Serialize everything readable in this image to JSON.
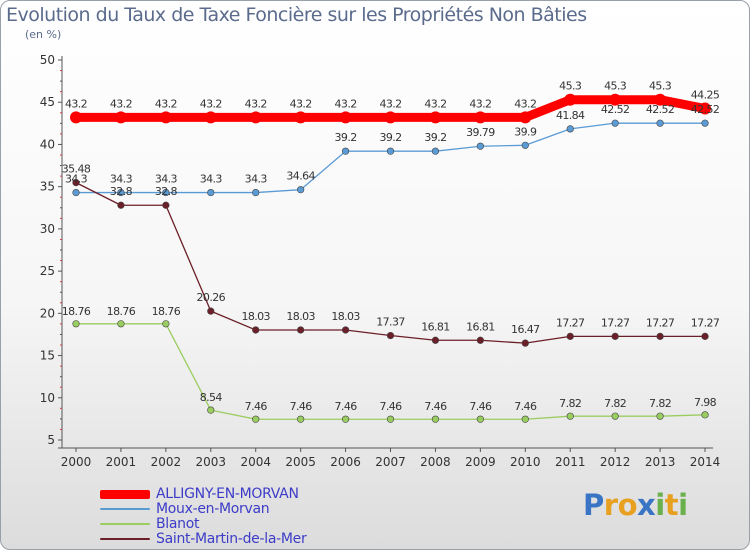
{
  "title": "Evolution du Taux de Taxe Foncière sur les Propriétés Non Bâties",
  "unit_label": "(en %)",
  "logo": {
    "text": "Proxiti",
    "letters": [
      {
        "char": "P",
        "color": "#3a74c4"
      },
      {
        "char": "r",
        "color": "#e8a020"
      },
      {
        "char": "o",
        "color": "#e8a020"
      },
      {
        "char": "x",
        "color": "#3a74c4"
      },
      {
        "char": "i",
        "color": "#6ab04c"
      },
      {
        "char": "t",
        "color": "#e8a020"
      },
      {
        "char": "i",
        "color": "#6ab04c"
      }
    ]
  },
  "chart_data": {
    "type": "line",
    "title": "Evolution du Taux de Taxe Foncière sur les Propriétés Non Bâties",
    "ylabel": "(en %)",
    "xlabel": "",
    "ylim": [
      5,
      50
    ],
    "yticks": [
      5,
      10,
      15,
      20,
      25,
      30,
      35,
      40,
      45,
      50
    ],
    "grid": false,
    "x": [
      "2000",
      "2001",
      "2002",
      "2003",
      "2004",
      "2005",
      "2006",
      "2007",
      "2008",
      "2009",
      "2010",
      "2011",
      "2012",
      "2013",
      "2014"
    ],
    "series": [
      {
        "name": "ALLIGNY-EN-MORVAN",
        "color": "#ff0000",
        "thick": true,
        "values": [
          43.2,
          43.2,
          43.2,
          43.2,
          43.2,
          43.2,
          43.2,
          43.2,
          43.2,
          43.2,
          43.2,
          45.3,
          45.3,
          45.3,
          44.25
        ],
        "labels": [
          "43.2",
          "43.2",
          "43.2",
          "43.2",
          "43.2",
          "43.2",
          "43.2",
          "43.2",
          "43.2",
          "43.2",
          "43.2",
          "45.3",
          "45.3",
          "45.3",
          "44.25"
        ]
      },
      {
        "name": "Moux-en-Morvan",
        "color": "#5b9bd5",
        "thick": false,
        "values": [
          34.3,
          34.3,
          34.3,
          34.3,
          34.3,
          34.64,
          39.2,
          39.2,
          39.2,
          39.79,
          39.9,
          41.84,
          42.52,
          42.52,
          42.52
        ],
        "labels": [
          "34.3",
          "34.3",
          "34.3",
          "34.3",
          "34.3",
          "34.64",
          "39.2",
          "39.2",
          "39.2",
          "39.79",
          "39.9",
          "41.84",
          "42.52",
          "42.52",
          "42.52"
        ]
      },
      {
        "name": "Blanot",
        "color": "#9acd60",
        "thick": false,
        "values": [
          18.76,
          18.76,
          18.76,
          8.54,
          7.46,
          7.46,
          7.46,
          7.46,
          7.46,
          7.46,
          7.46,
          7.82,
          7.82,
          7.82,
          7.98
        ],
        "labels": [
          "18.76",
          "18.76",
          "18.76",
          "8.54",
          "7.46",
          "7.46",
          "7.46",
          "7.46",
          "7.46",
          "7.46",
          "7.46",
          "7.82",
          "7.82",
          "7.82",
          "7.98"
        ]
      },
      {
        "name": "Saint-Martin-de-la-Mer",
        "color": "#6b1f28",
        "thick": false,
        "values": [
          35.48,
          32.8,
          32.8,
          20.26,
          18.03,
          18.03,
          18.03,
          17.37,
          16.81,
          16.81,
          16.47,
          17.27,
          17.27,
          17.27,
          17.27
        ],
        "labels": [
          "35.48",
          "32.8",
          "32.8",
          "20.26",
          "18.03",
          "18.03",
          "18.03",
          "17.37",
          "16.81",
          "16.81",
          "16.47",
          "17.27",
          "17.27",
          "17.27",
          "17.27"
        ]
      }
    ]
  }
}
